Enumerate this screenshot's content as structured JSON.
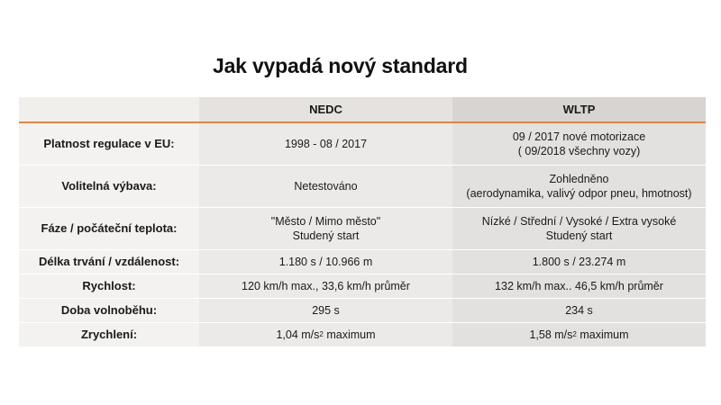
{
  "title": "Jak vypadá nový standard",
  "table": {
    "header": {
      "col1": "",
      "col2": "NEDC",
      "col3": "WLTP"
    },
    "rows": [
      {
        "label": "Platnost regulace v EU:",
        "nedc": [
          "1998 - 08 / 2017"
        ],
        "wltp": [
          "09 / 2017 nové motorizace",
          "( 09/2018 všechny vozy)"
        ]
      },
      {
        "label": "Volitelná výbava:",
        "nedc": [
          "Netestováno"
        ],
        "wltp": [
          "Zohledněno",
          "(aerodynamika, valivý odpor pneu, hmotnost)"
        ]
      },
      {
        "label": "Fáze / počáteční teplota:",
        "nedc": [
          "\"Město / Mimo město\"",
          "Studený start"
        ],
        "wltp": [
          "Nízké / Střední / Vysoké / Extra vysoké",
          "Studený start"
        ]
      },
      {
        "label": "Délka trvání / vzdálenost:",
        "nedc": [
          "1.180 s / 10.966 m"
        ],
        "wltp": [
          "1.800 s / 23.274 m"
        ]
      },
      {
        "label": "Rychlost:",
        "nedc": [
          "120 km/h max., 33,6 km/h průměr"
        ],
        "wltp": [
          "132 km/h max.. 46,5 km/h průměr"
        ]
      },
      {
        "label": "Doba volnoběhu:",
        "nedc": [
          "295 s"
        ],
        "wltp": [
          "234 s"
        ]
      },
      {
        "label": "Zrychlení:",
        "nedc_value": "1,04 m/s",
        "nedc_sup": "2",
        "nedc_suffix": " maximum",
        "wltp_value": "1,58 m/s",
        "wltp_sup": "2",
        "wltp_suffix": " maximum"
      }
    ]
  },
  "colors": {
    "accent": "#e08442",
    "nedc_header": "#e6e3de",
    "wltp_header": "#d8d4cf"
  }
}
